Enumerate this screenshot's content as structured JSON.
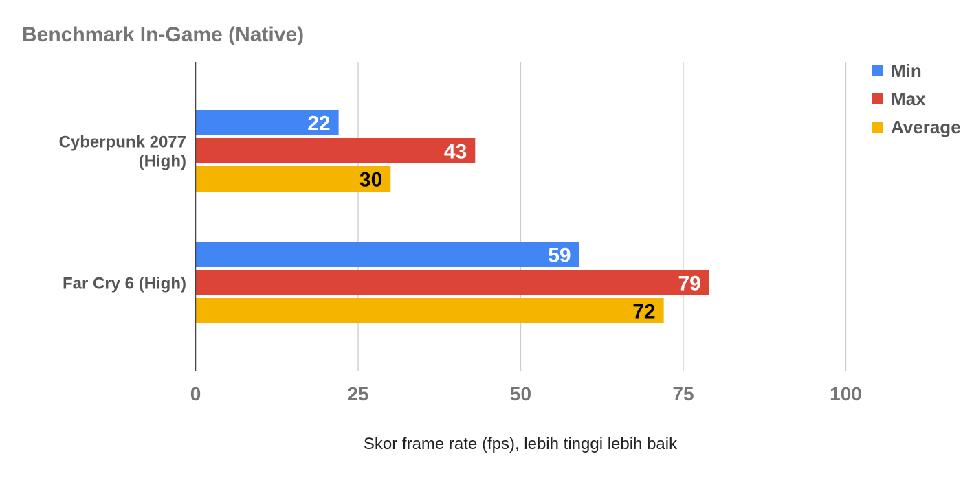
{
  "chart_data": {
    "type": "bar",
    "orientation": "horizontal",
    "title": "Benchmark In-Game (Native)",
    "xlabel": "Skor frame rate (fps), lebih tinggi lebih baik",
    "ylabel": "",
    "xlim": [
      0,
      100
    ],
    "xticks": [
      "0",
      "25",
      "50",
      "75",
      "100"
    ],
    "grid": true,
    "legend_position": "right",
    "categories": [
      [
        "Cyberpunk 2077",
        "(High)"
      ],
      [
        "Far Cry 6 (High)"
      ]
    ],
    "series": [
      {
        "name": "Min",
        "color": "#4285f4",
        "label_color": "#ffffff",
        "values": [
          22,
          59
        ]
      },
      {
        "name": "Max",
        "color": "#db4437",
        "label_color": "#ffffff",
        "values": [
          43,
          79
        ]
      },
      {
        "name": "Average",
        "color": "#f4b400",
        "label_color": "#000000",
        "values": [
          30,
          72
        ]
      }
    ]
  }
}
